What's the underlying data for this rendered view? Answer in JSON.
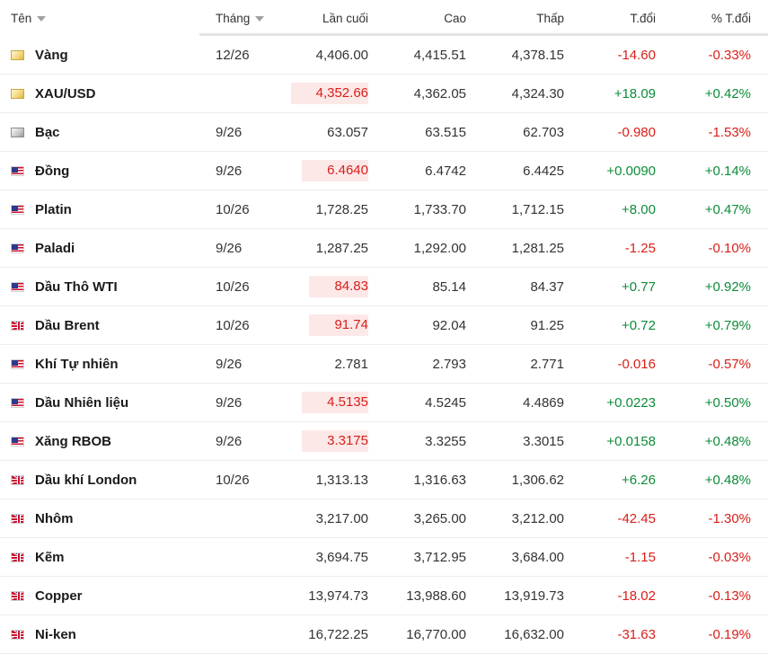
{
  "header": {
    "name": "Tên",
    "month": "Tháng",
    "last": "Lần cuối",
    "high": "Cao",
    "low": "Thấp",
    "change": "T.đổi",
    "change_pct": "% T.đổi"
  },
  "rows": [
    {
      "name": "Vàng",
      "icon": "gold-icon",
      "month": "12/26",
      "last": "4,406.00",
      "last_highlight": false,
      "high": "4,415.51",
      "low": "4,378.15",
      "change": "-14.60",
      "change_pct": "-0.33%",
      "direction": "down"
    },
    {
      "name": "XAU/USD",
      "icon": "gold-icon",
      "month": "",
      "last": "4,352.66",
      "last_highlight": true,
      "high": "4,362.05",
      "low": "4,324.30",
      "change": "+18.09",
      "change_pct": "+0.42%",
      "direction": "up"
    },
    {
      "name": "Bạc",
      "icon": "silver-icon",
      "month": "9/26",
      "last": "63.057",
      "last_highlight": false,
      "high": "63.515",
      "low": "62.703",
      "change": "-0.980",
      "change_pct": "-1.53%",
      "direction": "down"
    },
    {
      "name": "Đồng",
      "icon": "us-flag-icon",
      "month": "9/26",
      "last": "6.4640",
      "last_highlight": true,
      "high": "6.4742",
      "low": "6.4425",
      "change": "+0.0090",
      "change_pct": "+0.14%",
      "direction": "up"
    },
    {
      "name": "Platin",
      "icon": "us-flag-icon",
      "month": "10/26",
      "last": "1,728.25",
      "last_highlight": false,
      "high": "1,733.70",
      "low": "1,712.15",
      "change": "+8.00",
      "change_pct": "+0.47%",
      "direction": "up"
    },
    {
      "name": "Paladi",
      "icon": "us-flag-icon",
      "month": "9/26",
      "last": "1,287.25",
      "last_highlight": false,
      "high": "1,292.00",
      "low": "1,281.25",
      "change": "-1.25",
      "change_pct": "-0.10%",
      "direction": "down"
    },
    {
      "name": "Dầu Thô WTI",
      "icon": "us-flag-icon",
      "month": "10/26",
      "last": "84.83",
      "last_highlight": true,
      "high": "85.14",
      "low": "84.37",
      "change": "+0.77",
      "change_pct": "+0.92%",
      "direction": "up"
    },
    {
      "name": "Dầu Brent",
      "icon": "uk-flag-icon",
      "month": "10/26",
      "last": "91.74",
      "last_highlight": true,
      "high": "92.04",
      "low": "91.25",
      "change": "+0.72",
      "change_pct": "+0.79%",
      "direction": "up"
    },
    {
      "name": "Khí Tự nhiên",
      "icon": "us-flag-icon",
      "month": "9/26",
      "last": "2.781",
      "last_highlight": false,
      "high": "2.793",
      "low": "2.771",
      "change": "-0.016",
      "change_pct": "-0.57%",
      "direction": "down"
    },
    {
      "name": "Dầu Nhiên liệu",
      "icon": "us-flag-icon",
      "month": "9/26",
      "last": "4.5135",
      "last_highlight": true,
      "high": "4.5245",
      "low": "4.4869",
      "change": "+0.0223",
      "change_pct": "+0.50%",
      "direction": "up"
    },
    {
      "name": "Xăng RBOB",
      "icon": "us-flag-icon",
      "month": "9/26",
      "last": "3.3175",
      "last_highlight": true,
      "high": "3.3255",
      "low": "3.3015",
      "change": "+0.0158",
      "change_pct": "+0.48%",
      "direction": "up"
    },
    {
      "name": "Dầu khí London",
      "icon": "uk-flag-icon",
      "month": "10/26",
      "last": "1,313.13",
      "last_highlight": false,
      "high": "1,316.63",
      "low": "1,306.62",
      "change": "+6.26",
      "change_pct": "+0.48%",
      "direction": "up"
    },
    {
      "name": "Nhôm",
      "icon": "uk-flag-icon",
      "month": "",
      "last": "3,217.00",
      "last_highlight": false,
      "high": "3,265.00",
      "low": "3,212.00",
      "change": "-42.45",
      "change_pct": "-1.30%",
      "direction": "down"
    },
    {
      "name": "Kẽm",
      "icon": "uk-flag-icon",
      "month": "",
      "last": "3,694.75",
      "last_highlight": false,
      "high": "3,712.95",
      "low": "3,684.00",
      "change": "-1.15",
      "change_pct": "-0.03%",
      "direction": "down"
    },
    {
      "name": "Copper",
      "icon": "uk-flag-icon",
      "month": "",
      "last": "13,974.73",
      "last_highlight": false,
      "high": "13,988.60",
      "low": "13,919.73",
      "change": "-18.02",
      "change_pct": "-0.13%",
      "direction": "down"
    },
    {
      "name": "Ni-ken",
      "icon": "uk-flag-icon",
      "month": "",
      "last": "16,722.25",
      "last_highlight": false,
      "high": "16,770.00",
      "low": "16,632.00",
      "change": "-31.63",
      "change_pct": "-0.19%",
      "direction": "down"
    }
  ],
  "colors": {
    "up": "#0d8b3a",
    "down": "#d91e18",
    "highlight_bg": "#fde8e8"
  }
}
